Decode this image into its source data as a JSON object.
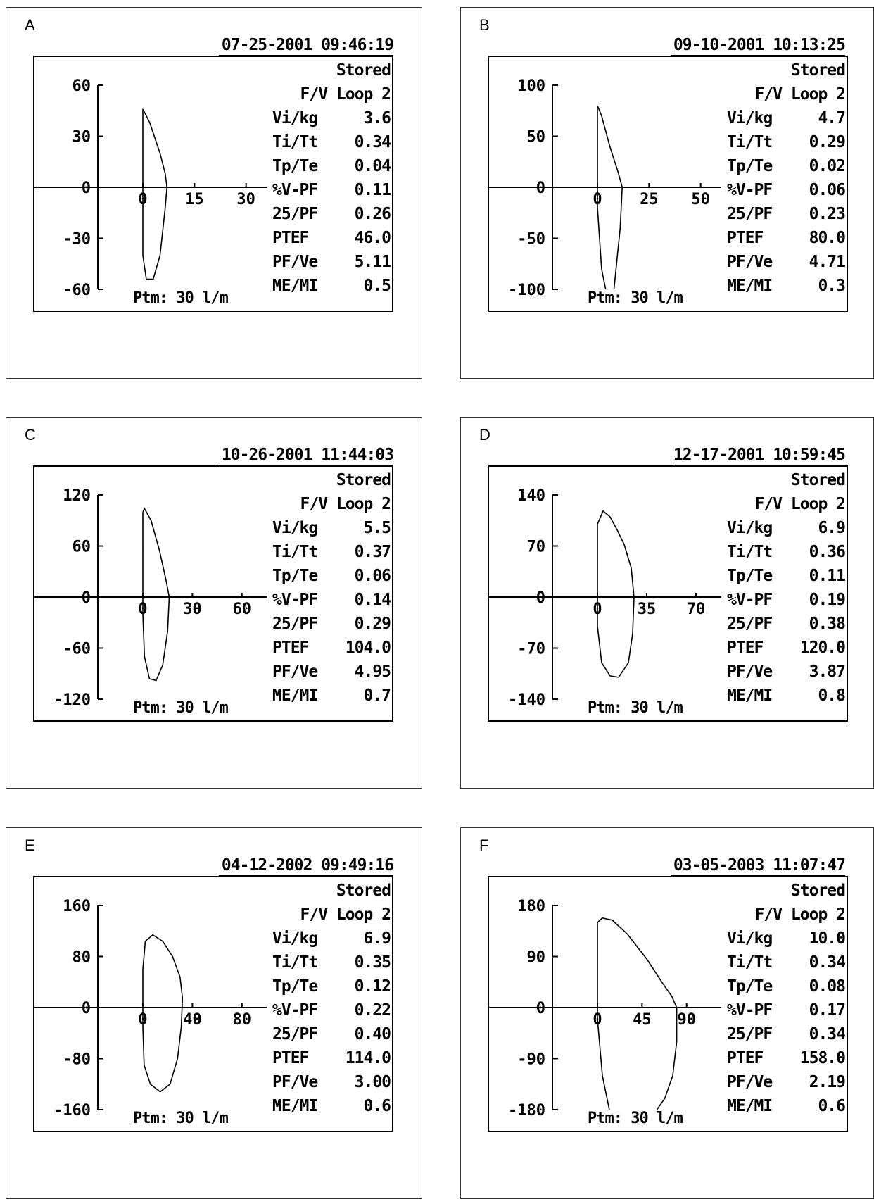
{
  "panels": [
    {
      "letter": "A",
      "timestamp": "07-25-2001  09:46:19",
      "stored": "Stored",
      "loop": "F/V Loop 2",
      "ptm": "Ptm: 30 l/m",
      "params": [
        {
          "label": "Vi/kg",
          "value": "3.6"
        },
        {
          "label": "Ti/Tt",
          "value": "0.34"
        },
        {
          "label": "Tp/Te",
          "value": "0.04"
        },
        {
          "label": "%V-PF",
          "value": "0.11"
        },
        {
          "label": "25/PF",
          "value": "0.26"
        },
        {
          "label": "PTEF",
          "value": "46.0"
        },
        {
          "label": "PF/Ve",
          "value": "5.11"
        },
        {
          "label": "ME/MI",
          "value": "0.5"
        }
      ]
    },
    {
      "letter": "B",
      "timestamp": "09-10-2001  10:13:25",
      "stored": "Stored",
      "loop": "F/V Loop 2",
      "ptm": "Ptm: 30 l/m",
      "params": [
        {
          "label": "Vi/kg",
          "value": "4.7"
        },
        {
          "label": "Ti/Tt",
          "value": "0.29"
        },
        {
          "label": "Tp/Te",
          "value": "0.02"
        },
        {
          "label": "%V-PF",
          "value": "0.06"
        },
        {
          "label": "25/PF",
          "value": "0.23"
        },
        {
          "label": "PTEF",
          "value": "80.0"
        },
        {
          "label": "PF/Ve",
          "value": "4.71"
        },
        {
          "label": "ME/MI",
          "value": "0.3"
        }
      ]
    },
    {
      "letter": "C",
      "timestamp": "10-26-2001  11:44:03",
      "stored": "Stored",
      "loop": "F/V Loop 2",
      "ptm": "Ptm: 30 l/m",
      "params": [
        {
          "label": "Vi/kg",
          "value": "5.5"
        },
        {
          "label": "Ti/Tt",
          "value": "0.37"
        },
        {
          "label": "Tp/Te",
          "value": "0.06"
        },
        {
          "label": "%V-PF",
          "value": "0.14"
        },
        {
          "label": "25/PF",
          "value": "0.29"
        },
        {
          "label": "PTEF",
          "value": "104.0"
        },
        {
          "label": "PF/Ve",
          "value": "4.95"
        },
        {
          "label": "ME/MI",
          "value": "0.7"
        }
      ]
    },
    {
      "letter": "D",
      "timestamp": "12-17-2001  10:59:45",
      "stored": "Stored",
      "loop": "F/V Loop 2",
      "ptm": "Ptm: 30 l/m",
      "params": [
        {
          "label": "Vi/kg",
          "value": "6.9"
        },
        {
          "label": "Ti/Tt",
          "value": "0.36"
        },
        {
          "label": "Tp/Te",
          "value": "0.11"
        },
        {
          "label": "%V-PF",
          "value": "0.19"
        },
        {
          "label": "25/PF",
          "value": "0.38"
        },
        {
          "label": "PTEF",
          "value": "120.0"
        },
        {
          "label": "PF/Ve",
          "value": "3.87"
        },
        {
          "label": "ME/MI",
          "value": "0.8"
        }
      ]
    },
    {
      "letter": "E",
      "timestamp": "04-12-2002  09:49:16",
      "stored": "Stored",
      "loop": "F/V Loop 2",
      "ptm": "Ptm: 30 l/m",
      "params": [
        {
          "label": "Vi/kg",
          "value": "6.9"
        },
        {
          "label": "Ti/Tt",
          "value": "0.35"
        },
        {
          "label": "Tp/Te",
          "value": "0.12"
        },
        {
          "label": "%V-PF",
          "value": "0.22"
        },
        {
          "label": "25/PF",
          "value": "0.40"
        },
        {
          "label": "PTEF",
          "value": "114.0"
        },
        {
          "label": "PF/Ve",
          "value": "3.00"
        },
        {
          "label": "ME/MI",
          "value": "0.6"
        }
      ]
    },
    {
      "letter": "F",
      "timestamp": "03-05-2003  11:07:47",
      "stored": "Stored",
      "loop": "F/V Loop 2",
      "ptm": "Ptm: 30 l/m",
      "params": [
        {
          "label": "Vi/kg",
          "value": "10.0"
        },
        {
          "label": "Ti/Tt",
          "value": "0.34"
        },
        {
          "label": "Tp/Te",
          "value": "0.08"
        },
        {
          "label": "%V-PF",
          "value": "0.17"
        },
        {
          "label": "25/PF",
          "value": "0.34"
        },
        {
          "label": "PTEF",
          "value": "158.0"
        },
        {
          "label": "PF/Ve",
          "value": "2.19"
        },
        {
          "label": "ME/MI",
          "value": "0.6"
        }
      ]
    }
  ],
  "chart_data": [
    {
      "type": "line",
      "panel": "A",
      "yticks": [
        "60",
        "30",
        "0",
        "-30",
        "-60"
      ],
      "ylim": [
        -60,
        60
      ],
      "xticks": [
        "0",
        "15",
        "30"
      ],
      "xlim": [
        -8,
        36
      ],
      "series": [
        {
          "x": [
            0,
            2,
            5,
            6.5,
            7,
            6.5,
            5,
            3,
            1,
            0,
            0
          ],
          "y": [
            46,
            38,
            20,
            8,
            0,
            -12,
            -40,
            -54,
            -54,
            -40,
            46
          ]
        }
      ]
    },
    {
      "type": "line",
      "panel": "B",
      "yticks": [
        "100",
        "50",
        "0",
        "-50",
        "-100"
      ],
      "ylim": [
        -100,
        100
      ],
      "xticks": [
        "0",
        "25",
        "50"
      ],
      "xlim": [
        -13,
        60
      ],
      "series": [
        {
          "x": [
            0,
            2,
            6,
            10,
            12,
            11,
            9,
            8
          ],
          "y": [
            80,
            70,
            40,
            15,
            0,
            -40,
            -80,
            -100
          ]
        },
        {
          "x": [
            0,
            0,
            2,
            4
          ],
          "y": [
            80,
            -20,
            -80,
            -100
          ]
        }
      ]
    },
    {
      "type": "line",
      "panel": "C",
      "yticks": [
        "120",
        "60",
        "0",
        "-60",
        "-120"
      ],
      "ylim": [
        -120,
        120
      ],
      "xticks": [
        "0",
        "30",
        "60"
      ],
      "xlim": [
        -15,
        75
      ],
      "series": [
        {
          "x": [
            0,
            1,
            5,
            10,
            14,
            16,
            15,
            12,
            8,
            4,
            1,
            0,
            0
          ],
          "y": [
            100,
            104,
            90,
            55,
            20,
            0,
            -40,
            -80,
            -98,
            -96,
            -70,
            -20,
            100
          ]
        }
      ]
    },
    {
      "type": "line",
      "panel": "D",
      "yticks": [
        "140",
        "70",
        "0",
        "-70",
        "-140"
      ],
      "ylim": [
        -140,
        140
      ],
      "xticks": [
        "0",
        "35",
        "70"
      ],
      "xlim": [
        -18,
        88
      ],
      "series": [
        {
          "x": [
            0,
            4,
            9,
            14,
            19,
            24,
            26,
            25,
            22,
            15,
            9,
            3,
            0,
            0,
            0
          ],
          "y": [
            100,
            118,
            110,
            92,
            72,
            40,
            0,
            -50,
            -90,
            -110,
            -108,
            -90,
            -40,
            60,
            100
          ]
        }
      ]
    },
    {
      "type": "line",
      "panel": "E",
      "yticks": [
        "160",
        "80",
        "0",
        "-80",
        "-160"
      ],
      "ylim": [
        -160,
        160
      ],
      "xticks": [
        "0",
        "40",
        "80"
      ],
      "xlim": [
        -20,
        100
      ],
      "series": [
        {
          "x": [
            2,
            8,
            16,
            24,
            30,
            32,
            31,
            28,
            22,
            14,
            6,
            1,
            0,
            0,
            2
          ],
          "y": [
            104,
            114,
            104,
            80,
            48,
            15,
            -30,
            -80,
            -120,
            -132,
            -120,
            -90,
            -30,
            60,
            104
          ]
        }
      ]
    },
    {
      "type": "line",
      "panel": "F",
      "yticks": [
        "180",
        "90",
        "0",
        "-90",
        "-180"
      ],
      "ylim": [
        -180,
        180
      ],
      "xticks": [
        "0",
        "45",
        "90"
      ],
      "xlim": [
        -25,
        125
      ],
      "series": [
        {
          "x": [
            0,
            5,
            15,
            30,
            50,
            65,
            75,
            80,
            80,
            76,
            68,
            60
          ],
          "y": [
            150,
            158,
            154,
            130,
            85,
            45,
            20,
            0,
            -60,
            -120,
            -160,
            -180
          ]
        },
        {
          "x": [
            0,
            0,
            5,
            12
          ],
          "y": [
            150,
            -20,
            -120,
            -180
          ]
        }
      ]
    }
  ]
}
